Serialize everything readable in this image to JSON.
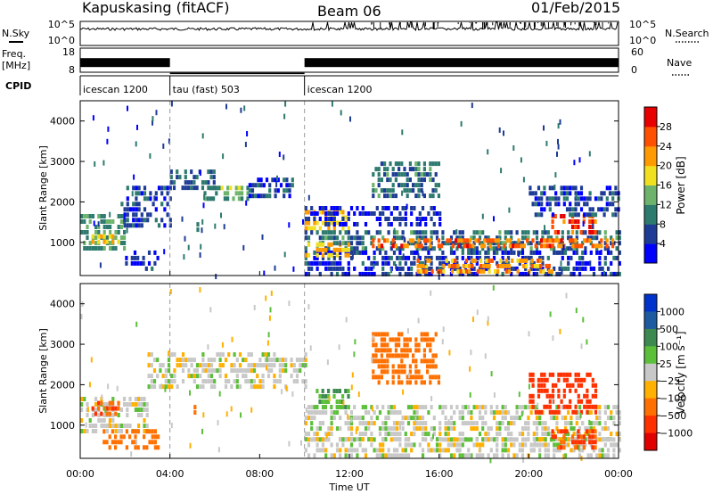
{
  "header": {
    "title": "Kapuskasing (fitACF)",
    "beam": "Beam 06",
    "date": "01/Feb/2015"
  },
  "chart_data": [
    {
      "type": "line",
      "panel": "noise",
      "left_label": "N.Sky",
      "left_ticks": [
        "10^5",
        "10^0"
      ],
      "right_label": "N.Search",
      "right_ticks": [
        "10^5",
        "10^0"
      ]
    },
    {
      "type": "line",
      "panel": "frequency-nave",
      "left_label_1": "Freq.",
      "left_label_2": "[MHz]",
      "left_ticks": [
        "18",
        "8"
      ],
      "right_label": "Nave",
      "right_ticks": [
        "60",
        "0"
      ],
      "freq_segments": [
        {
          "start_h": 0.0,
          "end_h": 4.0,
          "freq_mhz": 12.0
        },
        {
          "start_h": 4.0,
          "end_h": 10.0,
          "freq_mhz": 8.6
        },
        {
          "start_h": 10.0,
          "end_h": 24.0,
          "freq_mhz": 12.0
        }
      ]
    },
    {
      "type": "table",
      "panel": "cpid",
      "label": "CPID",
      "segments": [
        {
          "start_h": 0.0,
          "end_h": 4.0,
          "name": "icescan 1200"
        },
        {
          "start_h": 4.0,
          "end_h": 10.0,
          "name": "tau (fast) 503"
        },
        {
          "start_h": 10.0,
          "end_h": 24.0,
          "name": "icescan 1200"
        }
      ]
    },
    {
      "type": "heatmap",
      "panel": "power",
      "ylabel": "Slant Range [km]",
      "xlim": [
        0,
        24
      ],
      "ylim": [
        180,
        4500
      ],
      "yticks": [
        1000,
        2000,
        3000,
        4000
      ],
      "colorbar": {
        "label": "Power [dB]",
        "range": [
          0,
          32
        ],
        "ticks": [
          "4",
          "8",
          "12",
          "16",
          "20",
          "24",
          "28"
        ],
        "colors": [
          "#0000ff",
          "#1e3c96",
          "#2d7a6e",
          "#6db36b",
          "#f0e020",
          "#ff9a00",
          "#ff5000",
          "#e80000"
        ]
      },
      "regions": [
        {
          "t0": 0.0,
          "t1": 2.0,
          "r0": 800,
          "r1": 1700,
          "value": 12
        },
        {
          "t0": 0.5,
          "t1": 1.7,
          "r0": 1000,
          "r1": 1200,
          "value": 20
        },
        {
          "t0": 1.8,
          "t1": 4.0,
          "r0": 1400,
          "r1": 2400,
          "value": 6
        },
        {
          "t0": 2.0,
          "t1": 3.5,
          "r0": 400,
          "r1": 800,
          "value": 5
        },
        {
          "t0": 4.0,
          "t1": 6.0,
          "r0": 2300,
          "r1": 2800,
          "value": 8
        },
        {
          "t0": 5.5,
          "t1": 7.5,
          "r0": 2100,
          "r1": 2400,
          "value": 13
        },
        {
          "t0": 7.5,
          "t1": 9.5,
          "r0": 2200,
          "r1": 2600,
          "value": 6
        },
        {
          "t0": 4.8,
          "t1": 5.2,
          "r0": 1300,
          "r1": 1500,
          "value": 12
        },
        {
          "t0": 10.0,
          "t1": 12.0,
          "r0": 1400,
          "r1": 1800,
          "value": 20
        },
        {
          "t0": 10.0,
          "t1": 16.0,
          "r0": 1500,
          "r1": 1900,
          "value": 4
        },
        {
          "t0": 13.0,
          "t1": 16.0,
          "r0": 2100,
          "r1": 3000,
          "value": 9
        },
        {
          "t0": 10.0,
          "t1": 24.0,
          "r0": 800,
          "r1": 1300,
          "value": 9
        },
        {
          "t0": 10.0,
          "t1": 24.0,
          "r0": 200,
          "r1": 800,
          "value": 5
        },
        {
          "t0": 15.0,
          "t1": 21.0,
          "r0": 300,
          "r1": 600,
          "value": 22
        },
        {
          "t0": 13.0,
          "t1": 24.0,
          "r0": 900,
          "r1": 1100,
          "value": 25
        },
        {
          "t0": 10.0,
          "t1": 12.0,
          "r0": 700,
          "r1": 1000,
          "value": 20
        },
        {
          "t0": 21.0,
          "t1": 23.0,
          "r0": 1300,
          "r1": 1700,
          "value": 27
        },
        {
          "t0": 20.0,
          "t1": 24.0,
          "r0": 1700,
          "r1": 2400,
          "value": 6
        }
      ]
    },
    {
      "type": "heatmap",
      "panel": "velocity",
      "ylabel": "Slant Range [km]",
      "xlim": [
        0,
        24
      ],
      "ylim": [
        180,
        4500
      ],
      "yticks": [
        1000,
        2000,
        3000,
        4000
      ],
      "colorbar": {
        "label": "Velocity [m s⁻¹]",
        "ticks": [
          "1000",
          "500",
          "100",
          "25",
          "−25",
          "−100",
          "−500",
          "−1000"
        ],
        "colors": [
          "#0033cc",
          "#1e5aa0",
          "#3c8a50",
          "#5cbf3a",
          "#c8c8c8",
          "#ffb000",
          "#ff7000",
          "#ff3000",
          "#e00000"
        ]
      },
      "regions": [
        {
          "t0": 0.0,
          "t1": 3.0,
          "r0": 800,
          "r1": 1700,
          "value": 0
        },
        {
          "t0": 0.5,
          "t1": 1.7,
          "r0": 1300,
          "r1": 1600,
          "value": -300
        },
        {
          "t0": 1.0,
          "t1": 3.5,
          "r0": 400,
          "r1": 900,
          "value": -150
        },
        {
          "t0": 3.0,
          "t1": 10.0,
          "r0": 1900,
          "r1": 2800,
          "value": 0
        },
        {
          "t0": 4.8,
          "t1": 5.2,
          "r0": 1300,
          "r1": 1500,
          "value": -200
        },
        {
          "t0": 10.0,
          "t1": 24.0,
          "r0": 700,
          "r1": 1500,
          "value": 0
        },
        {
          "t0": 10.0,
          "t1": 24.0,
          "r0": 200,
          "r1": 700,
          "value": 0
        },
        {
          "t0": 13.0,
          "t1": 16.0,
          "r0": 2000,
          "r1": 3300,
          "value": -200
        },
        {
          "t0": 10.5,
          "t1": 12.0,
          "r0": 1500,
          "r1": 1900,
          "value": 60
        },
        {
          "t0": 20.0,
          "t1": 23.0,
          "r0": 1300,
          "r1": 2300,
          "value": -400
        },
        {
          "t0": 21.0,
          "t1": 23.0,
          "r0": 500,
          "r1": 900,
          "value": -300
        }
      ]
    }
  ],
  "xaxis": {
    "label": "Time UT",
    "ticks": [
      "00:00",
      "04:00",
      "08:00",
      "12:00",
      "16:00",
      "20:00",
      "00:00"
    ]
  }
}
